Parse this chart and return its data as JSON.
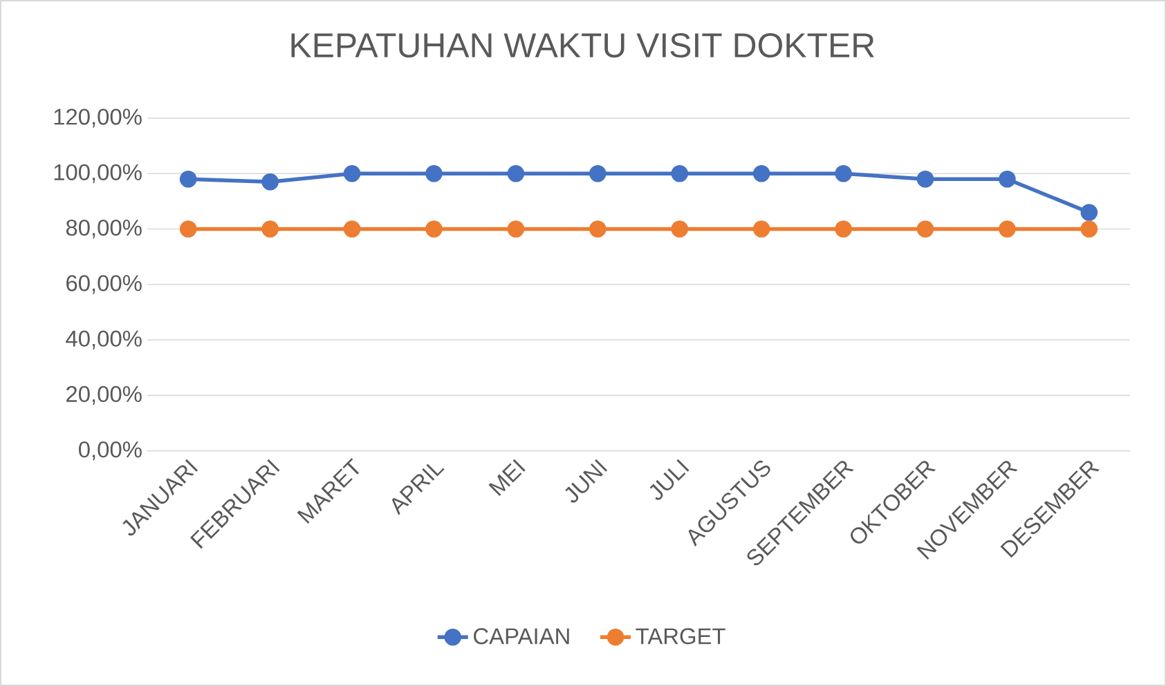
{
  "chart_data": {
    "type": "line",
    "title": "KEPATUHAN WAKTU VISIT DOKTER",
    "categories": [
      "JANUARI",
      "FEBRUARI",
      "MARET",
      "APRIL",
      "MEI",
      "JUNI",
      "JULI",
      "AGUSTUS",
      "SEPTEMBER",
      "OKTOBER",
      "NOVEMBER",
      "DESEMBER"
    ],
    "series": [
      {
        "name": "CAPAIAN",
        "color": "#4472c4",
        "values": [
          98,
          97,
          100,
          100,
          100,
          100,
          100,
          100,
          100,
          98,
          98,
          86
        ]
      },
      {
        "name": "TARGET",
        "color": "#ed7d31",
        "values": [
          80,
          80,
          80,
          80,
          80,
          80,
          80,
          80,
          80,
          80,
          80,
          80
        ]
      }
    ],
    "ylim": [
      0,
      120
    ],
    "yticks": [
      {
        "value": 0,
        "label": "0,00%"
      },
      {
        "value": 20,
        "label": "20,00%"
      },
      {
        "value": 40,
        "label": "40,00%"
      },
      {
        "value": 60,
        "label": "60,00%"
      },
      {
        "value": 80,
        "label": "80,00%"
      },
      {
        "value": 100,
        "label": "100,00%"
      },
      {
        "value": 120,
        "label": "120,00%"
      }
    ],
    "grid": "y",
    "legend": "bottom",
    "marker": "circle"
  }
}
